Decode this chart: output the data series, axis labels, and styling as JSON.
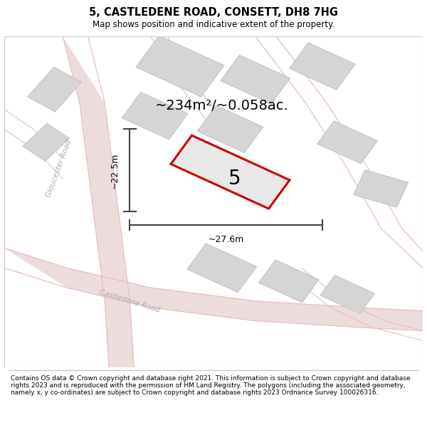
{
  "title": "5, CASTLEDENE ROAD, CONSETT, DH8 7HG",
  "subtitle": "Map shows position and indicative extent of the property.",
  "area_label": "~234m²/~0.058ac.",
  "property_number": "5",
  "dim_width": "~27.6m",
  "dim_height": "~22.5m",
  "footer": "Contains OS data © Crown copyright and database right 2021. This information is subject to Crown copyright and database rights 2023 and is reproduced with the permission of HM Land Registry. The polygons (including the associated geometry, namely x, y co-ordinates) are subject to Crown copyright and database rights 2023 Ordnance Survey 100026316.",
  "map_bg": "#f7f4f4",
  "road_fill": "#eddcdc",
  "road_line": "#e8b8b8",
  "building_fill": "#d5d5d5",
  "building_edge": "#c0c0c0",
  "property_fill": "#e8e8e8",
  "property_edge": "#cc0000",
  "dim_color": "#444444",
  "road_label_color": "#aaaaaa",
  "title_fontsize": 10.5,
  "subtitle_fontsize": 8.5,
  "footer_fontsize": 6.5
}
